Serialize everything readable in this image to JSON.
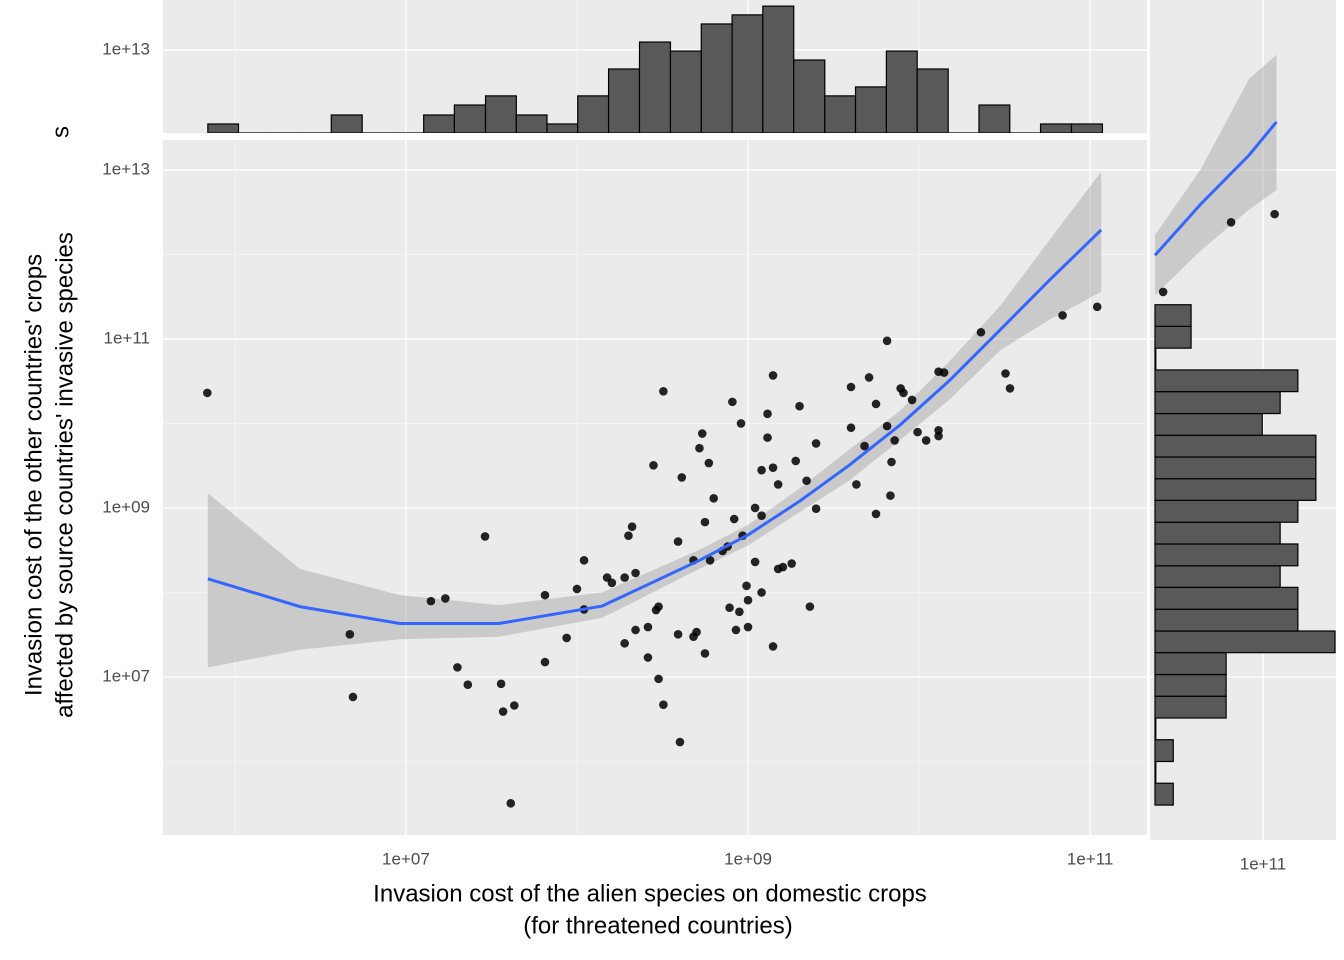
{
  "chart_data": [
    {
      "type": "scatter",
      "x_label": [
        "Invasion cost of the alien species on domestic crops",
        "(for threatened countries)"
      ],
      "y_label": [
        "Invasion cost of the other countries' crops",
        "affected by source countries' invasive species"
      ],
      "x_log": true,
      "y_log": true,
      "grid": true,
      "point_color": "#000000",
      "xlim": [
        380000.0,
        215000000000.0
      ],
      "xticks": [
        {
          "value": 10000000.0,
          "label": "1e+07"
        },
        {
          "value": 1000000000.0,
          "label": "1e+09"
        },
        {
          "value": 100000000000.0,
          "label": "1e+11"
        }
      ],
      "x_minor_ticks": [
        1000000.0,
        100000000.0,
        10000000000.0
      ],
      "ylim": [
        135000.0,
        22600000000000.0
      ],
      "yticks": [
        {
          "value": 10000000.0,
          "label": "1e+07"
        },
        {
          "value": 1000000000.0,
          "label": "1e+09"
        },
        {
          "value": 100000000000.0,
          "label": "1e+11"
        },
        {
          "value": 10000000000000.0,
          "label": "1e+13"
        }
      ],
      "y_minor_ticks": [
        1000000.0,
        100000000.0,
        10000000000.0,
        1000000000000.0
      ],
      "x": [
        690000.0,
        4700000.0,
        4900000.0,
        14000000.0,
        17000000.0,
        20000000.0,
        23000000.0,
        29000000.0,
        36000000.0,
        37000000.0,
        43000000.0,
        41000000.0,
        65000000.0,
        65000000.0,
        87000000.0,
        100000000.0,
        110000000.0,
        110000000.0,
        150000000.0,
        160000000.0,
        190000000.0,
        190000000.0,
        200000000.0,
        210000000.0,
        220000000.0,
        220000000.0,
        260000000.0,
        260000000.0,
        280000000.0,
        290000000.0,
        300000000.0,
        300000000.0,
        320000000.0,
        320000000.0,
        390000000.0,
        390000000.0,
        400000000.0,
        410000000.0,
        480000000.0,
        480000000.0,
        500000000.0,
        520000000.0,
        540000000.0,
        560000000.0,
        560000000.0,
        590000000.0,
        600000000.0,
        630000000.0,
        710000000.0,
        760000000.0,
        780000000.0,
        810000000.0,
        830000000.0,
        850000000.0,
        890000000.0,
        910000000.0,
        930000000.0,
        980000000.0,
        1000000000.0,
        1000000000.0,
        1100000000.0,
        1100000000.0,
        1200000000.0,
        1200000000.0,
        1200000000.0,
        1300000000.0,
        1300000000.0,
        1400000000.0,
        1400000000.0,
        1400000000.0,
        1500000000.0,
        1500000000.0,
        1600000000.0,
        1800000000.0,
        1900000000.0,
        2000000000.0,
        2200000000.0,
        2300000000.0,
        2500000000.0,
        2500000000.0,
        4000000000.0,
        4000000000.0,
        4300000000.0,
        4800000000.0,
        5100000000.0,
        5600000000.0,
        5600000000.0,
        6500000000.0,
        6500000000.0,
        6800000000.0,
        6900000000.0,
        7200000000.0,
        7800000000.0,
        8100000000.0,
        9100000000.0,
        9800000000.0,
        11000000000.0,
        13000000000.0,
        13000000000.0,
        13000000000.0,
        14000000000.0,
        23000000000.0,
        32000000000.0,
        34000000000.0,
        69000000000.0,
        110000000000.0
      ],
      "values": [
        23000000000.0,
        32000000.0,
        5800000.0,
        79000000.0,
        85000000.0,
        13000000.0,
        8100000.0,
        460000000.0,
        8300000.0,
        3900000.0,
        4600000.0,
        320000.0,
        93000000.0,
        15000000.0,
        29000000.0,
        110000000.0,
        63000000.0,
        240000000.0,
        150000000.0,
        130000000.0,
        150000000.0,
        25000000.0,
        470000000.0,
        600000000.0,
        36000000.0,
        170000000.0,
        17000000.0,
        39000000.0,
        3200000000.0,
        62000000.0,
        68000000.0,
        9500000.0,
        4700000.0,
        24000000000.0,
        400000000.0,
        32000000.0,
        1700000.0,
        2300000000.0,
        30000000.0,
        240000000.0,
        34000000.0,
        5100000000.0,
        7600000000.0,
        19000000.0,
        680000000.0,
        3400000000.0,
        240000000.0,
        1300000000.0,
        310000000.0,
        350000000.0,
        66000000.0,
        18000000000.0,
        740000000.0,
        36000000.0,
        59000000.0,
        10000000000.0,
        470000000.0,
        120000000.0,
        81000000.0,
        39000000.0,
        230000000.0,
        1000000000.0,
        100000000.0,
        810000000.0,
        2800000000.0,
        6800000000.0,
        13000000000.0,
        3000000000.0,
        23000000.0,
        37000000000.0,
        1900000000.0,
        190000000.0,
        200000000.0,
        220000000.0,
        3600000000.0,
        16000000000.0,
        2100000000.0,
        68000000.0,
        5800000000.0,
        980000000.0,
        27000000000.0,
        8900000000.0,
        1900000000.0,
        5400000000.0,
        35000000000.0,
        17000000000.0,
        850000000.0,
        95000000000.0,
        9300000000.0,
        1400000000.0,
        3500000000.0,
        6300000000.0,
        26000000000.0,
        23000000000.0,
        19000000000.0,
        7900000000.0,
        6300000000.0,
        41000000000.0,
        7100000000.0,
        8300000000.0,
        40000000000.0,
        120000000000.0,
        39000000000.0,
        26000000000.0,
        190000000000.0,
        240000000000.0
      ],
      "fit": {
        "color": "#3366ff",
        "band_color": "#999999",
        "x": [
          695000.0,
          2400000.0,
          9200000.0,
          35000000.0,
          140000000.0,
          520000000.0,
          1000000000.0,
          2000000000.0,
          3900000000.0,
          7700000000.0,
          15000000000.0,
          30000000000.0,
          58000000000.0,
          116000000000.0
        ],
        "y": [
          145000000.0,
          68000000.0,
          43000000.0,
          43000000.0,
          69000000.0,
          240000000.0,
          480000000.0,
          1200000000.0,
          3200000000.0,
          9500000000.0,
          32000000000.0,
          130000000000.0,
          500000000000.0,
          1950000000000.0
        ],
        "lower": [
          13000000.0,
          21000000.0,
          28000000.0,
          30000000.0,
          50000000.0,
          190000000.0,
          360000000.0,
          890000000.0,
          2100000000.0,
          6300000000.0,
          19000000000.0,
          74000000000.0,
          170000000000.0,
          360000000000.0
        ],
        "upper": [
          1500000000.0,
          190000000.0,
          93000000.0,
          71000000.0,
          100000000.0,
          320000000.0,
          630000000.0,
          1700000000.0,
          4900000000.0,
          14000000000.0,
          54000000000.0,
          250000000000.0,
          1500000000000.0,
          9500000000000.0
        ]
      }
    },
    {
      "type": "histogram",
      "orientation": "vertical",
      "y_label": "s",
      "color": "#595959",
      "x_log": true,
      "y_log": true,
      "grid": true,
      "xlim": [
        380000.0,
        215000000000.0
      ],
      "ylim": [
        1040000000000.0,
        39000000000000.0
      ],
      "yticks": [
        {
          "value": 10000000000000.0,
          "label": "1e+13"
        }
      ],
      "bins": [
        695000.0,
        1050000.0,
        1600000.0,
        2420000.0,
        3660000.0,
        5550000.0,
        8390000.0,
        12700000.0,
        19200000.0,
        29200000.0,
        44200000.0,
        66800000.0,
        101000000.0,
        153000000.0,
        232000000.0,
        352000000.0,
        533000000.0,
        807000000.0,
        1220000000.0,
        1850000000.0,
        2810000000.0,
        4250000000.0,
        6440000000.0,
        9750000000.0,
        14800000000.0,
        22400000000.0,
        33900000000.0,
        51300000000.0,
        77800000000.0,
        118000000000.0
      ],
      "counts": [
        1330000000000.0,
        1040000000000.0,
        1040000000000.0,
        1040000000000.0,
        1700000000000.0,
        1040000000000.0,
        1040000000000.0,
        1700000000000.0,
        2230000000000.0,
        2860000000000.0,
        1700000000000.0,
        1330000000000.0,
        2860000000000.0,
        5950000000000.0,
        12400000000000.0,
        9700000000000.0,
        20300000000000.0,
        26000000000000.0,
        33000000000000.0,
        7600000000000.0,
        2860000000000.0,
        3650000000000.0,
        9700000000000.0,
        5950000000000.0,
        1040000000000.0,
        2230000000000.0,
        1040000000000.0,
        1330000000000.0,
        1330000000000.0
      ]
    },
    {
      "type": "histogram",
      "orientation": "horizontal",
      "color": "#595959",
      "x_log": true,
      "y_log": true,
      "grid": true,
      "xlim": [
        23300000000.0,
        264000000000.0
      ],
      "ylim": [
        135000.0,
        22600000000000.0
      ],
      "xticks": [
        {
          "value": 100000000000.0,
          "label": "1e+11"
        }
      ],
      "bins": [
        305000.0,
        553000.0,
        1000000.0,
        1810000.0,
        3270000.0,
        5920000.0,
        10700000.0,
        19400000.0,
        35000000.0,
        63400000.0,
        115000000.0,
        207000000.0,
        375000000.0,
        678000000.0,
        1230000000.0,
        2220000000.0,
        4010000000.0,
        7260000000.0,
        13100000000.0,
        23800000000.0,
        43000000000.0,
        77800000000.0,
        141000000000.0,
        254000000000.0
      ],
      "counts": [
        29800000000.0,
        23300000000.0,
        29800000000.0,
        23300000000.0,
        60800000000.0,
        60800000000.0,
        60800000000.0,
        264000000000.0,
        160000000000.0,
        160000000000.0,
        126000000000.0,
        160000000000.0,
        126000000000.0,
        160000000000.0,
        204000000000.0,
        204000000000.0,
        204000000000.0,
        99000000000.0,
        126000000000.0,
        160000000000.0,
        23300000000.0,
        37900000000.0,
        37900000000.0
      ],
      "overlay_points": {
        "x": [
          26000000000.0,
          65000000000.0,
          117000000000.0
        ],
        "values": [
          360000000000.0,
          2400000000000.0,
          3000000000000.0
        ]
      },
      "overlay_fit": {
        "color": "#3366ff",
        "band_color": "#999999",
        "x": [
          23300000000.0,
          43000000000.0,
          83000000000.0,
          120000000000.0
        ],
        "y": [
          980000000000.0,
          3900000000000.0,
          15000000000000.0,
          37000000000000.0
        ],
        "lower": [
          330000000000.0,
          1100000000000.0,
          3400000000000.0,
          5800000000000.0
        ],
        "upper": [
          1700000000000.0,
          10000000000000.0,
          120000000000000.0,
          230000000000000.0
        ]
      }
    }
  ]
}
